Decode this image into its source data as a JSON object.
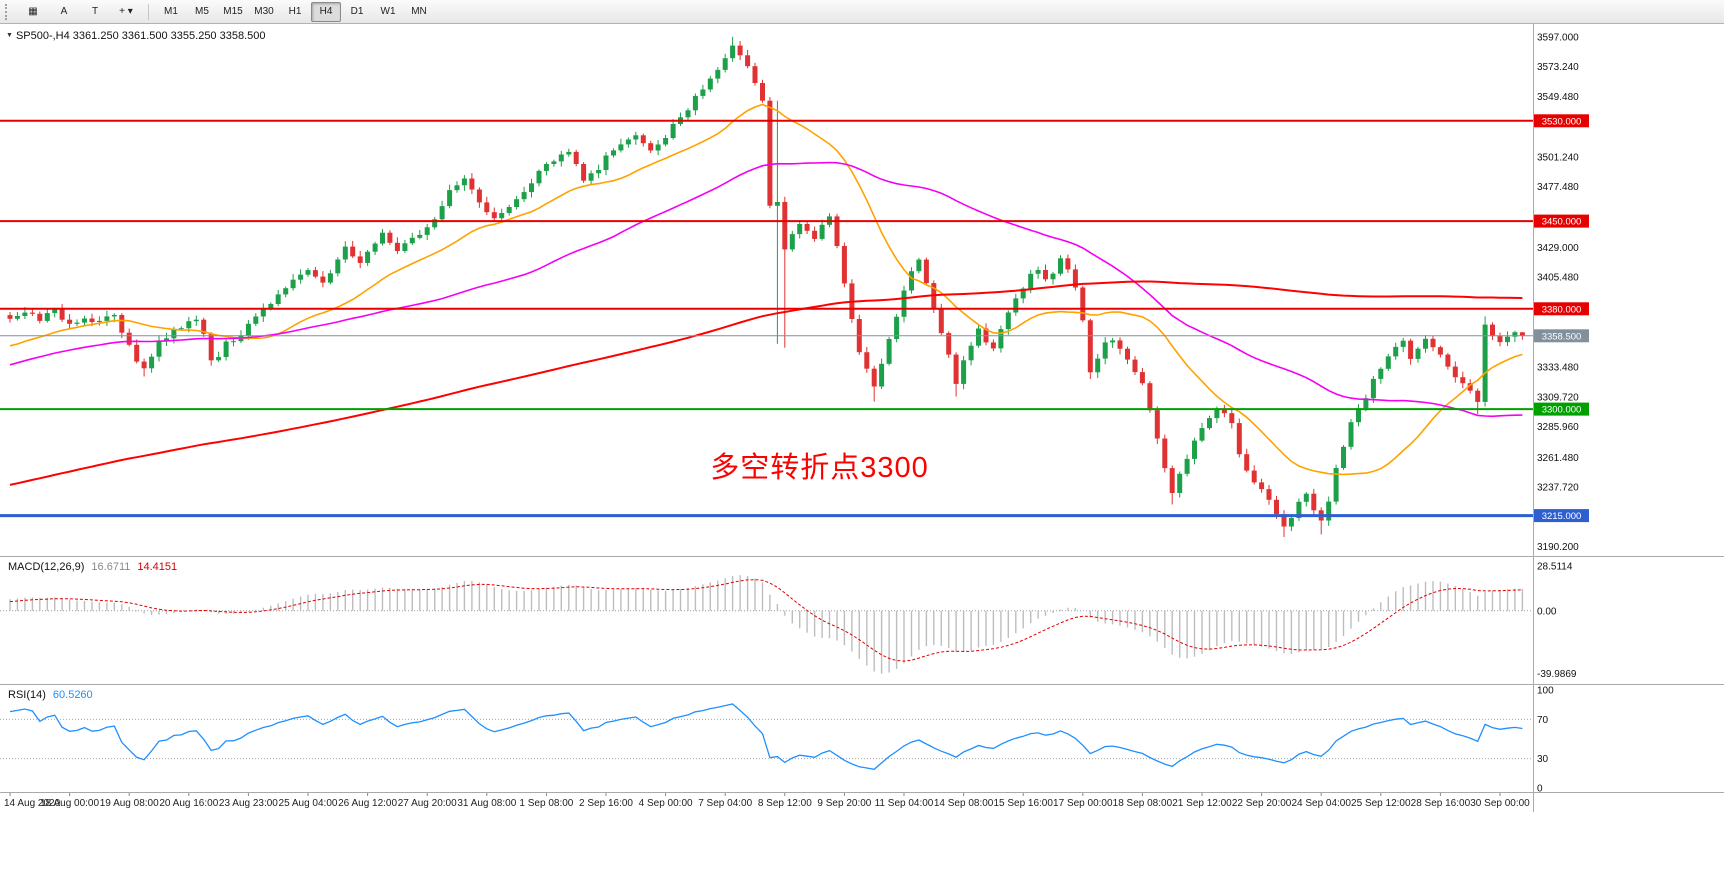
{
  "toolbar": {
    "tool_buttons": [
      {
        "id": "windows",
        "glyph": "▦"
      },
      {
        "id": "cursor",
        "glyph": "A"
      },
      {
        "id": "text",
        "glyph": "T"
      },
      {
        "id": "shapes",
        "glyph": "+",
        "dropdown": "▾"
      }
    ],
    "timeframes": [
      "M1",
      "M5",
      "M15",
      "M30",
      "H1",
      "H4",
      "D1",
      "W1",
      "MN"
    ],
    "active_timeframe": "H4"
  },
  "chart_data": {
    "type": "candlestick",
    "symbol": "SP500-",
    "timeframe": "H4",
    "title_arrow": "▼",
    "title": "SP500-,H4 3361.250 3361.500 3355.250 3358.500",
    "ohlc_current": {
      "open": 3361.25,
      "high": 3361.5,
      "low": 3355.25,
      "close": 3358.5
    },
    "ylim": [
      3186,
      3604
    ],
    "num_bars": 204,
    "bars_per_x_label": 8,
    "x_labels": [
      "14 Aug 2020",
      "18 Aug 00:00",
      "19 Aug 08:00",
      "20 Aug 16:00",
      "23 Aug 23:00",
      "25 Aug 04:00",
      "26 Aug 12:00",
      "27 Aug 20:00",
      "31 Aug 08:00",
      "1 Sep 08:00",
      "2 Sep 16:00",
      "4 Sep 00:00",
      "7 Sep 04:00",
      "8 Sep 12:00",
      "9 Sep 20:00",
      "11 Sep 04:00",
      "14 Sep 08:00",
      "15 Sep 16:00",
      "17 Sep 00:00",
      "18 Sep 08:00",
      "21 Sep 12:00",
      "22 Sep 20:00",
      "24 Sep 04:00",
      "25 Sep 12:00",
      "28 Sep 16:00",
      "30 Sep 00:00"
    ],
    "y_tick_labels": [
      {
        "text": "3597.000",
        "price": 3597.0
      },
      {
        "text": "3573.240",
        "price": 3573.24
      },
      {
        "text": "3549.480",
        "price": 3549.48
      },
      {
        "text": "3501.240",
        "price": 3501.24
      },
      {
        "text": "3477.480",
        "price": 3477.48
      },
      {
        "text": "3429.000",
        "price": 3429.0
      },
      {
        "text": "3405.480",
        "price": 3405.48
      },
      {
        "text": "3333.480",
        "price": 3333.48
      },
      {
        "text": "3309.720",
        "price": 3309.72
      },
      {
        "text": "3285.960",
        "price": 3285.96
      },
      {
        "text": "3261.480",
        "price": 3261.48
      },
      {
        "text": "3237.720",
        "price": 3237.72
      },
      {
        "text": "3190.200",
        "price": 3190.2
      }
    ],
    "horizontal_levels": [
      {
        "price": 3530.0,
        "label": "3530.000",
        "color": "#E60000",
        "width": 2
      },
      {
        "price": 3450.0,
        "label": "3450.000",
        "color": "#E60000",
        "width": 2
      },
      {
        "price": 3380.0,
        "label": "3380.000",
        "color": "#E60000",
        "width": 2
      },
      {
        "price": 3300.0,
        "label": "3300.000",
        "color": "#00A000",
        "width": 2
      },
      {
        "price": 3215.0,
        "label": "3215.000",
        "color": "#2E5FD0",
        "width": 3
      }
    ],
    "current_price": {
      "price": 3358.5,
      "label": "3358.500",
      "color": "#81909C"
    },
    "candle_colors": {
      "up": "#1CA049",
      "down": "#E03232"
    },
    "moving_averages": [
      {
        "period": 20,
        "color": "#FFA200",
        "width": 1.6
      },
      {
        "period": 55,
        "color": "#F400F4",
        "width": 1.6
      },
      {
        "period": 200,
        "color": "#FF0000",
        "width": 2
      }
    ],
    "annotation": {
      "text": "多空转折点3300",
      "color": "#FF0000",
      "bar": 94,
      "price": 3253
    },
    "pinned_bars": [
      0,
      97,
      202,
      203
    ],
    "close_anchors": [
      [
        0,
        3372
      ],
      [
        2,
        3377
      ],
      [
        4,
        3371
      ],
      [
        6,
        3378
      ],
      [
        8,
        3368
      ],
      [
        10,
        3374
      ],
      [
        12,
        3369
      ],
      [
        14,
        3376
      ],
      [
        15,
        3362
      ],
      [
        16,
        3350
      ],
      [
        17,
        3338
      ],
      [
        18,
        3332
      ],
      [
        19,
        3340
      ],
      [
        20,
        3355
      ],
      [
        22,
        3362
      ],
      [
        23,
        3366
      ],
      [
        25,
        3372
      ],
      [
        26,
        3360
      ],
      [
        27,
        3338
      ],
      [
        28,
        3342
      ],
      [
        29,
        3352
      ],
      [
        31,
        3360
      ],
      [
        32,
        3368
      ],
      [
        34,
        3378
      ],
      [
        36,
        3390
      ],
      [
        38,
        3402
      ],
      [
        40,
        3412
      ],
      [
        42,
        3400
      ],
      [
        44,
        3420
      ],
      [
        45,
        3430
      ],
      [
        47,
        3415
      ],
      [
        49,
        3432
      ],
      [
        50,
        3440
      ],
      [
        52,
        3425
      ],
      [
        54,
        3436
      ],
      [
        56,
        3445
      ],
      [
        58,
        3460
      ],
      [
        59,
        3475
      ],
      [
        61,
        3482
      ],
      [
        63,
        3466
      ],
      [
        65,
        3452
      ],
      [
        66,
        3458
      ],
      [
        68,
        3468
      ],
      [
        70,
        3482
      ],
      [
        72,
        3495
      ],
      [
        74,
        3502
      ],
      [
        75,
        3505
      ],
      [
        77,
        3482
      ],
      [
        79,
        3492
      ],
      [
        80,
        3502
      ],
      [
        82,
        3512
      ],
      [
        84,
        3520
      ],
      [
        86,
        3508
      ],
      [
        88,
        3518
      ],
      [
        89,
        3528
      ],
      [
        91,
        3540
      ],
      [
        92,
        3548
      ],
      [
        94,
        3562
      ],
      [
        95,
        3572
      ],
      [
        96,
        3580
      ],
      [
        97,
        3590
      ],
      [
        98,
        3584
      ],
      [
        99,
        3575
      ],
      [
        100,
        3562
      ],
      [
        101,
        3545
      ],
      [
        102,
        3462
      ],
      [
        103,
        3465
      ],
      [
        104,
        3428
      ],
      [
        105,
        3438
      ],
      [
        106,
        3448
      ],
      [
        107,
        3442
      ],
      [
        108,
        3436
      ],
      [
        109,
        3445
      ],
      [
        110,
        3452
      ],
      [
        111,
        3430
      ],
      [
        112,
        3400
      ],
      [
        113,
        3372
      ],
      [
        114,
        3345
      ],
      [
        115,
        3332
      ],
      [
        116,
        3320
      ],
      [
        117,
        3338
      ],
      [
        118,
        3355
      ],
      [
        119,
        3375
      ],
      [
        120,
        3395
      ],
      [
        121,
        3410
      ],
      [
        122,
        3420
      ],
      [
        123,
        3402
      ],
      [
        124,
        3382
      ],
      [
        125,
        3360
      ],
      [
        126,
        3342
      ],
      [
        127,
        3322
      ],
      [
        128,
        3338
      ],
      [
        129,
        3352
      ],
      [
        130,
        3365
      ],
      [
        131,
        3355
      ],
      [
        132,
        3348
      ],
      [
        133,
        3362
      ],
      [
        134,
        3378
      ],
      [
        135,
        3388
      ],
      [
        136,
        3398
      ],
      [
        137,
        3406
      ],
      [
        138,
        3412
      ],
      [
        139,
        3402
      ],
      [
        140,
        3406
      ],
      [
        141,
        3420
      ],
      [
        142,
        3412
      ],
      [
        143,
        3398
      ],
      [
        144,
        3372
      ],
      [
        145,
        3330
      ],
      [
        146,
        3342
      ],
      [
        147,
        3352
      ],
      [
        148,
        3356
      ],
      [
        149,
        3348
      ],
      [
        150,
        3340
      ],
      [
        151,
        3330
      ],
      [
        152,
        3322
      ],
      [
        153,
        3300
      ],
      [
        154,
        3276
      ],
      [
        155,
        3252
      ],
      [
        156,
        3232
      ],
      [
        157,
        3248
      ],
      [
        158,
        3262
      ],
      [
        159,
        3274
      ],
      [
        160,
        3285
      ],
      [
        161,
        3292
      ],
      [
        162,
        3300
      ],
      [
        163,
        3296
      ],
      [
        164,
        3290
      ],
      [
        165,
        3262
      ],
      [
        166,
        3250
      ],
      [
        167,
        3242
      ],
      [
        168,
        3235
      ],
      [
        169,
        3228
      ],
      [
        170,
        3218
      ],
      [
        171,
        3208
      ],
      [
        172,
        3214
      ],
      [
        173,
        3226
      ],
      [
        174,
        3232
      ],
      [
        175,
        3220
      ],
      [
        176,
        3212
      ],
      [
        177,
        3228
      ],
      [
        178,
        3252
      ],
      [
        179,
        3270
      ],
      [
        180,
        3288
      ],
      [
        181,
        3300
      ],
      [
        182,
        3310
      ],
      [
        183,
        3322
      ],
      [
        184,
        3334
      ],
      [
        185,
        3344
      ],
      [
        186,
        3350
      ],
      [
        187,
        3354
      ],
      [
        188,
        3342
      ],
      [
        189,
        3348
      ],
      [
        190,
        3354
      ],
      [
        191,
        3348
      ],
      [
        192,
        3342
      ],
      [
        193,
        3332
      ],
      [
        194,
        3326
      ],
      [
        195,
        3320
      ],
      [
        196,
        3314
      ],
      [
        197,
        3306
      ],
      [
        198,
        3368
      ],
      [
        199,
        3360
      ],
      [
        200,
        3355
      ],
      [
        201,
        3358
      ],
      [
        202,
        3361.3
      ],
      [
        203,
        3358.5
      ]
    ],
    "wick_overrides": [
      {
        "bar": 18,
        "low": 3326
      },
      {
        "bar": 97,
        "high": 3597
      },
      {
        "bar": 103,
        "high": 3546,
        "low": 3352
      },
      {
        "bar": 104,
        "low": 3349
      },
      {
        "bar": 116,
        "low": 3306
      },
      {
        "bar": 127,
        "low": 3310
      },
      {
        "bar": 145,
        "low": 3324
      },
      {
        "bar": 156,
        "low": 3224
      },
      {
        "bar": 171,
        "low": 3198
      },
      {
        "bar": 176,
        "low": 3200
      },
      {
        "bar": 197,
        "low": 3296
      },
      {
        "bar": 198,
        "low": 3302,
        "high": 3374
      }
    ],
    "indicators": {
      "macd": {
        "label": "MACD(12,26,9)",
        "params": [
          12,
          26,
          9
        ],
        "value_main": "16.6711",
        "value_signal": "14.4151",
        "axis_labels": [
          {
            "text": "28.5114",
            "value": 28.5114
          },
          {
            "text": "0.00",
            "value": 0.0
          },
          {
            "text": "-39.9869",
            "value": -39.9869
          }
        ],
        "ylim": [
          -44,
          31
        ],
        "histogram_color": "#BDBDBD",
        "signal_color": "#E00000"
      },
      "rsi": {
        "label": "RSI(14)",
        "period": 14,
        "value": "60.5260",
        "levels": [
          70,
          30
        ],
        "axis_labels": [
          {
            "text": "100",
            "value": 100
          },
          {
            "text": "70",
            "value": 70
          },
          {
            "text": "30",
            "value": 30
          },
          {
            "text": "0",
            "value": 0
          }
        ],
        "ylim": [
          0,
          100
        ],
        "line_color": "#1E90FF"
      }
    }
  }
}
